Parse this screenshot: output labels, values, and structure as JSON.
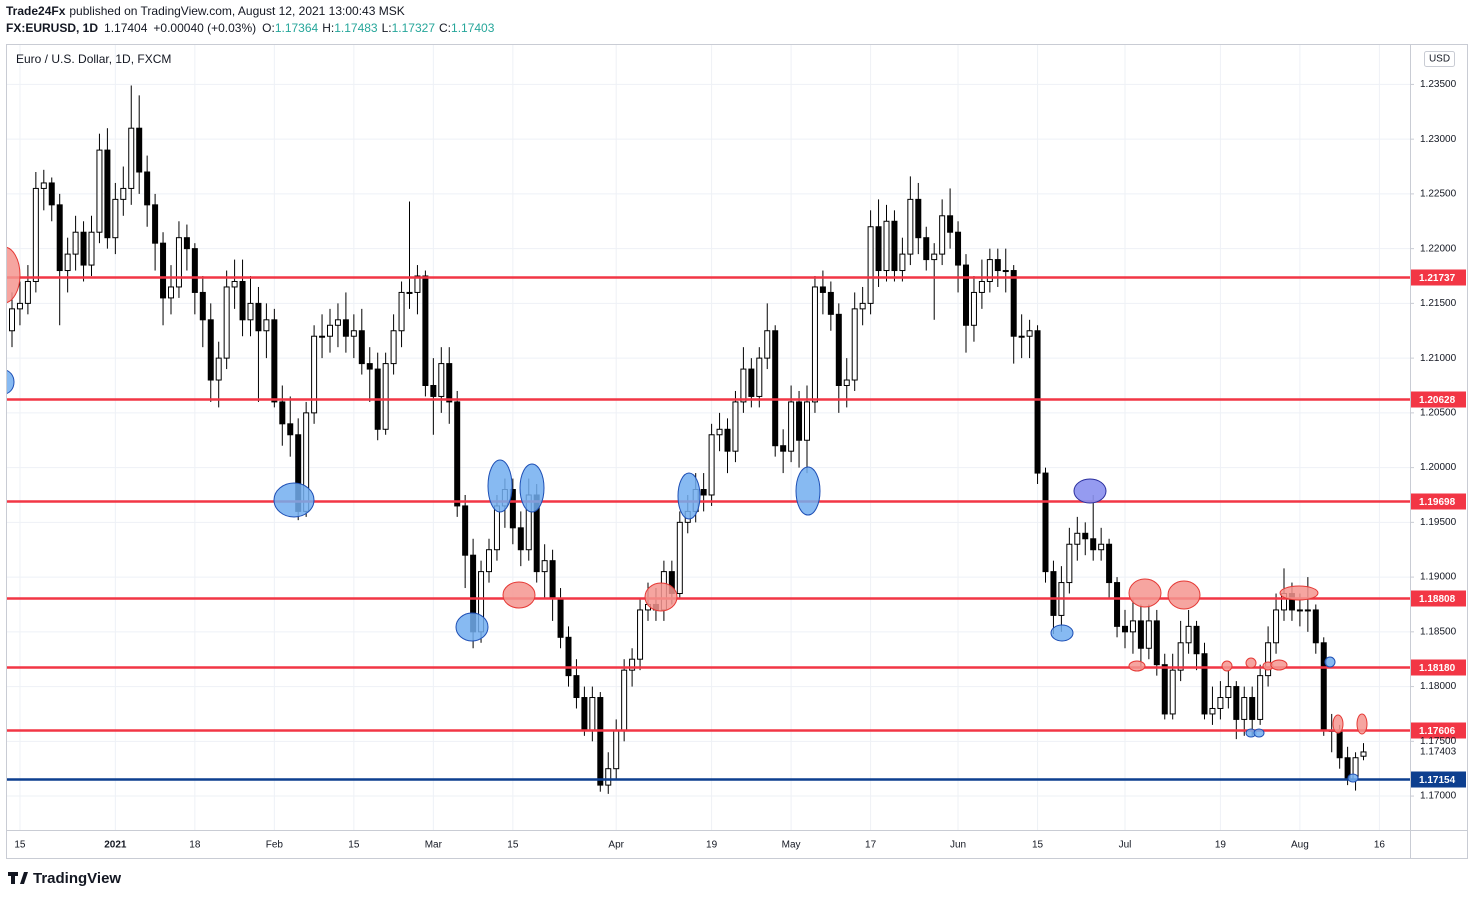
{
  "header": {
    "author": "Trade24Fx",
    "published": "published on TradingView.com, August 12, 2021 13:00:43 MSK",
    "symbol": "FX:EURUSD, 1D",
    "last": 1.17404,
    "change": "+0.00040 (+0.03%)",
    "o_label": "O:",
    "h_label": "H:",
    "l_label": "L:",
    "c_label": "C:"
  },
  "footer": {
    "brand": "TradingView"
  },
  "chart_data": {
    "type": "candlestick",
    "title": "Euro / U.S. Dollar, 1D, FXCM",
    "currency": "USD",
    "categories": [
      null,
      "15",
      null,
      null,
      null,
      null,
      null,
      null,
      null,
      null,
      null,
      null,
      null,
      "2021",
      null,
      null,
      null,
      null,
      null,
      null,
      null,
      null,
      null,
      "18",
      null,
      null,
      null,
      null,
      null,
      null,
      null,
      null,
      null,
      "Feb",
      null,
      null,
      null,
      null,
      null,
      null,
      null,
      null,
      null,
      "15",
      null,
      null,
      null,
      null,
      null,
      null,
      null,
      null,
      null,
      "Mar",
      null,
      null,
      null,
      null,
      null,
      null,
      null,
      null,
      null,
      "15",
      null,
      null,
      null,
      null,
      null,
      null,
      null,
      null,
      null,
      null,
      null,
      null,
      "Apr",
      null,
      null,
      null,
      null,
      null,
      null,
      null,
      null,
      null,
      null,
      null,
      "19",
      null,
      null,
      null,
      null,
      null,
      null,
      null,
      null,
      null,
      "May",
      null,
      null,
      null,
      null,
      null,
      null,
      null,
      null,
      null,
      "17",
      null,
      null,
      null,
      null,
      null,
      null,
      null,
      null,
      null,
      null,
      "Jun",
      null,
      null,
      null,
      null,
      null,
      null,
      null,
      null,
      null,
      "15",
      null,
      null,
      null,
      null,
      null,
      null,
      null,
      null,
      null,
      null,
      "Jul",
      null,
      null,
      null,
      null,
      null,
      null,
      null,
      null,
      null,
      null,
      null,
      "19",
      null,
      null,
      null,
      null,
      null,
      null,
      null,
      null,
      null,
      "Aug",
      null,
      null,
      null,
      null,
      null,
      null,
      null,
      null,
      null,
      "16"
    ],
    "candles": [
      [
        1.2125,
        1.216,
        1.211,
        1.2145
      ],
      [
        1.2145,
        1.217,
        1.213,
        1.215
      ],
      [
        1.215,
        1.2185,
        1.214,
        1.217
      ],
      [
        1.217,
        1.227,
        1.216,
        1.2255
      ],
      [
        1.2255,
        1.2272,
        1.2235,
        1.226
      ],
      [
        1.226,
        1.2265,
        1.2225,
        1.224
      ],
      [
        1.224,
        1.225,
        1.213,
        1.218
      ],
      [
        1.218,
        1.221,
        1.216,
        1.2195
      ],
      [
        1.2195,
        1.223,
        1.218,
        1.2215
      ],
      [
        1.2215,
        1.2225,
        1.217,
        1.2185
      ],
      [
        1.2185,
        1.223,
        1.2175,
        1.2215
      ],
      [
        1.2215,
        1.2305,
        1.2205,
        1.229
      ],
      [
        1.229,
        1.231,
        1.22,
        1.221
      ],
      [
        1.221,
        1.226,
        1.2195,
        1.2245
      ],
      [
        1.2245,
        1.2275,
        1.223,
        1.2255
      ],
      [
        1.2255,
        1.2349,
        1.224,
        1.231
      ],
      [
        1.231,
        1.234,
        1.225,
        1.227
      ],
      [
        1.227,
        1.2285,
        1.222,
        1.224
      ],
      [
        1.224,
        1.225,
        1.218,
        1.2205
      ],
      [
        1.2205,
        1.2215,
        1.213,
        1.2155
      ],
      [
        1.2155,
        1.2185,
        1.214,
        1.2165
      ],
      [
        1.2165,
        1.2225,
        1.2155,
        1.221
      ],
      [
        1.221,
        1.2222,
        1.218,
        1.22
      ],
      [
        1.22,
        1.2205,
        1.214,
        1.216
      ],
      [
        1.216,
        1.2175,
        1.211,
        1.2135
      ],
      [
        1.2135,
        1.215,
        1.206,
        1.208
      ],
      [
        1.208,
        1.2115,
        1.2055,
        1.21
      ],
      [
        1.21,
        1.218,
        1.209,
        1.2165
      ],
      [
        1.2165,
        1.219,
        1.2145,
        1.217
      ],
      [
        1.217,
        1.219,
        1.212,
        1.2135
      ],
      [
        1.2135,
        1.2175,
        1.212,
        1.215
      ],
      [
        1.215,
        1.2165,
        1.206,
        1.2125
      ],
      [
        1.2125,
        1.215,
        1.21,
        1.2135
      ],
      [
        1.2135,
        1.2145,
        1.2055,
        1.206
      ],
      [
        1.206,
        1.2075,
        1.202,
        1.204
      ],
      [
        1.204,
        1.2065,
        1.201,
        1.203
      ],
      [
        1.203,
        1.2045,
        1.1952,
        1.196
      ],
      [
        1.196,
        1.206,
        1.1955,
        1.205
      ],
      [
        1.205,
        1.213,
        1.204,
        1.212
      ],
      [
        1.212,
        1.214,
        1.21,
        1.212
      ],
      [
        1.212,
        1.2145,
        1.2105,
        1.213
      ],
      [
        1.213,
        1.215,
        1.211,
        1.2135
      ],
      [
        1.2135,
        1.216,
        1.2105,
        1.212
      ],
      [
        1.212,
        1.214,
        1.21,
        1.2125
      ],
      [
        1.2125,
        1.2145,
        1.2085,
        1.2095
      ],
      [
        1.2095,
        1.211,
        1.206,
        1.209
      ],
      [
        1.209,
        1.2105,
        1.2025,
        1.2035
      ],
      [
        1.2035,
        1.2105,
        1.203,
        1.2095
      ],
      [
        1.2095,
        1.214,
        1.2085,
        1.2125
      ],
      [
        1.2125,
        1.217,
        1.211,
        1.216
      ],
      [
        1.216,
        1.2243,
        1.2145,
        1.216
      ],
      [
        1.216,
        1.2185,
        1.214,
        1.2175
      ],
      [
        1.2175,
        1.218,
        1.2065,
        1.2075
      ],
      [
        1.2075,
        1.21,
        1.203,
        1.2065
      ],
      [
        1.2065,
        1.211,
        1.205,
        1.2095
      ],
      [
        1.2095,
        1.211,
        1.204,
        1.206
      ],
      [
        1.206,
        1.207,
        1.1955,
        1.1965
      ],
      [
        1.1965,
        1.1975,
        1.189,
        1.192
      ],
      [
        1.192,
        1.1935,
        1.1835,
        1.185
      ],
      [
        1.185,
        1.1915,
        1.184,
        1.1905
      ],
      [
        1.1905,
        1.1935,
        1.1895,
        1.1925
      ],
      [
        1.1925,
        1.1975,
        1.1915,
        1.1965
      ],
      [
        1.1965,
        1.199,
        1.1945,
        1.198
      ],
      [
        1.198,
        1.199,
        1.193,
        1.1945
      ],
      [
        1.1945,
        1.196,
        1.191,
        1.1925
      ],
      [
        1.1925,
        1.199,
        1.1915,
        1.1975
      ],
      [
        1.1975,
        1.1985,
        1.1895,
        1.1905
      ],
      [
        1.1905,
        1.193,
        1.188,
        1.1915
      ],
      [
        1.1915,
        1.1925,
        1.186,
        1.188
      ],
      [
        1.188,
        1.189,
        1.1835,
        1.1845
      ],
      [
        1.1845,
        1.1855,
        1.18,
        1.181
      ],
      [
        1.181,
        1.1825,
        1.178,
        1.179
      ],
      [
        1.179,
        1.18,
        1.1755,
        1.176
      ],
      [
        1.176,
        1.18,
        1.175,
        1.179
      ],
      [
        1.179,
        1.1795,
        1.1704,
        1.171
      ],
      [
        1.171,
        1.174,
        1.1702,
        1.1725
      ],
      [
        1.1725,
        1.177,
        1.1715,
        1.176
      ],
      [
        1.176,
        1.1825,
        1.175,
        1.1815
      ],
      [
        1.1815,
        1.1835,
        1.18,
        1.1825
      ],
      [
        1.1825,
        1.188,
        1.1815,
        1.187
      ],
      [
        1.187,
        1.1895,
        1.186,
        1.1875
      ],
      [
        1.1875,
        1.189,
        1.186,
        1.187
      ],
      [
        1.187,
        1.1915,
        1.186,
        1.1905
      ],
      [
        1.1905,
        1.1915,
        1.1875,
        1.1885
      ],
      [
        1.1885,
        1.196,
        1.188,
        1.195
      ],
      [
        1.195,
        1.1975,
        1.194,
        1.196
      ],
      [
        1.196,
        1.1995,
        1.195,
        1.198
      ],
      [
        1.198,
        1.1995,
        1.196,
        1.1975
      ],
      [
        1.1975,
        1.204,
        1.1965,
        1.203
      ],
      [
        1.203,
        1.205,
        1.2015,
        1.2035
      ],
      [
        1.2035,
        1.2045,
        1.1995,
        1.2015
      ],
      [
        1.2015,
        1.207,
        1.2005,
        1.206
      ],
      [
        1.206,
        1.211,
        1.205,
        1.209
      ],
      [
        1.209,
        1.21,
        1.2055,
        1.2065
      ],
      [
        1.2065,
        1.211,
        1.2055,
        1.21
      ],
      [
        1.21,
        1.215,
        1.209,
        1.2125
      ],
      [
        1.2125,
        1.213,
        1.201,
        1.202
      ],
      [
        1.202,
        1.2035,
        1.1995,
        1.2015
      ],
      [
        1.2015,
        1.2075,
        1.2005,
        1.206
      ],
      [
        1.206,
        1.207,
        1.2,
        1.2025
      ],
      [
        1.2025,
        1.2075,
        1.1995,
        1.206
      ],
      [
        1.206,
        1.2175,
        1.205,
        1.2165
      ],
      [
        1.2165,
        1.218,
        1.214,
        1.216
      ],
      [
        1.216,
        1.217,
        1.2125,
        1.214
      ],
      [
        1.214,
        1.215,
        1.205,
        1.2075
      ],
      [
        1.2075,
        1.21,
        1.2055,
        1.208
      ],
      [
        1.208,
        1.216,
        1.207,
        1.2145
      ],
      [
        1.2145,
        1.2165,
        1.213,
        1.215
      ],
      [
        1.215,
        1.2235,
        1.214,
        1.222
      ],
      [
        1.222,
        1.2245,
        1.2165,
        1.218
      ],
      [
        1.218,
        1.224,
        1.217,
        1.2225
      ],
      [
        1.2225,
        1.2235,
        1.217,
        1.218
      ],
      [
        1.218,
        1.221,
        1.217,
        1.2195
      ],
      [
        1.2195,
        1.2266,
        1.2185,
        1.2245
      ],
      [
        1.2245,
        1.226,
        1.2195,
        1.221
      ],
      [
        1.221,
        1.222,
        1.218,
        1.219
      ],
      [
        1.219,
        1.2205,
        1.2135,
        1.2195
      ],
      [
        1.2195,
        1.2245,
        1.2185,
        1.223
      ],
      [
        1.223,
        1.2255,
        1.22,
        1.2215
      ],
      [
        1.2215,
        1.2225,
        1.216,
        1.2185
      ],
      [
        1.2185,
        1.2195,
        1.2105,
        1.213
      ],
      [
        1.213,
        1.2175,
        1.2115,
        1.216
      ],
      [
        1.216,
        1.219,
        1.2145,
        1.217
      ],
      [
        1.217,
        1.22,
        1.216,
        1.219
      ],
      [
        1.219,
        1.22,
        1.2165,
        1.218
      ],
      [
        1.218,
        1.22,
        1.216,
        1.218
      ],
      [
        1.218,
        1.2185,
        1.2095,
        1.212
      ],
      [
        1.212,
        1.214,
        1.21,
        1.212
      ],
      [
        1.212,
        1.2135,
        1.21,
        1.2125
      ],
      [
        1.2125,
        1.213,
        1.1985,
        1.1995
      ],
      [
        1.1995,
        1.2,
        1.1895,
        1.1905
      ],
      [
        1.1905,
        1.1915,
        1.1848,
        1.1865
      ],
      [
        1.1865,
        1.191,
        1.185,
        1.1895
      ],
      [
        1.1895,
        1.1945,
        1.1885,
        1.193
      ],
      [
        1.193,
        1.1955,
        1.1915,
        1.194
      ],
      [
        1.194,
        1.195,
        1.192,
        1.1935
      ],
      [
        1.1935,
        1.1975,
        1.1915,
        1.1925
      ],
      [
        1.1925,
        1.1945,
        1.1915,
        1.193
      ],
      [
        1.193,
        1.1935,
        1.188,
        1.1895
      ],
      [
        1.1895,
        1.19,
        1.1845,
        1.1855
      ],
      [
        1.1855,
        1.187,
        1.1835,
        1.185
      ],
      [
        1.185,
        1.188,
        1.183,
        1.186
      ],
      [
        1.186,
        1.1875,
        1.1815,
        1.1835
      ],
      [
        1.1835,
        1.1875,
        1.1825,
        1.186
      ],
      [
        1.186,
        1.187,
        1.181,
        1.182
      ],
      [
        1.182,
        1.183,
        1.177,
        1.1775
      ],
      [
        1.1775,
        1.183,
        1.177,
        1.1815
      ],
      [
        1.1815,
        1.186,
        1.1805,
        1.184
      ],
      [
        1.184,
        1.187,
        1.183,
        1.1855
      ],
      [
        1.1855,
        1.186,
        1.1815,
        1.183
      ],
      [
        1.183,
        1.184,
        1.177,
        1.1775
      ],
      [
        1.1775,
        1.18,
        1.1765,
        1.178
      ],
      [
        1.178,
        1.1805,
        1.177,
        1.179
      ],
      [
        1.179,
        1.1815,
        1.178,
        1.18
      ],
      [
        1.18,
        1.1805,
        1.1752,
        1.177
      ],
      [
        1.177,
        1.18,
        1.1755,
        1.179
      ],
      [
        1.179,
        1.18,
        1.1755,
        1.177
      ],
      [
        1.177,
        1.182,
        1.1765,
        1.181
      ],
      [
        1.181,
        1.1855,
        1.18,
        1.184
      ],
      [
        1.184,
        1.1885,
        1.183,
        1.187
      ],
      [
        1.187,
        1.1908,
        1.186,
        1.1885
      ],
      [
        1.1885,
        1.1895,
        1.186,
        1.187
      ],
      [
        1.187,
        1.1885,
        1.1855,
        1.187
      ],
      [
        1.187,
        1.19,
        1.185,
        1.187
      ],
      [
        1.187,
        1.1875,
        1.183,
        1.184
      ],
      [
        1.184,
        1.1845,
        1.1755,
        1.176
      ],
      [
        1.176,
        1.1775,
        1.174,
        1.176
      ],
      [
        1.176,
        1.1765,
        1.1725,
        1.1735
      ],
      [
        1.1735,
        1.1745,
        1.171,
        1.1715
      ],
      [
        1.1715,
        1.174,
        1.1705,
        1.1735
      ],
      [
        1.17364,
        1.17483,
        1.17327,
        1.17403
      ],
      null,
      null
    ],
    "ylim": [
      1.1669,
      1.2386
    ],
    "yticks": [
      {
        "value": 1.17,
        "label": "1.17000"
      },
      {
        "value": 1.175,
        "label": "1.17500"
      },
      {
        "value": 1.18,
        "label": "1.18000"
      },
      {
        "value": 1.185,
        "label": "1.18500"
      },
      {
        "value": 1.19,
        "label": "1.19000"
      },
      {
        "value": 1.195,
        "label": "1.19500"
      },
      {
        "value": 1.2,
        "label": "1.20000"
      },
      {
        "value": 1.205,
        "label": "1.20500"
      },
      {
        "value": 1.21,
        "label": "1.21000"
      },
      {
        "value": 1.215,
        "label": "1.21500"
      },
      {
        "value": 1.22,
        "label": "1.22000"
      },
      {
        "value": 1.225,
        "label": "1.22500"
      },
      {
        "value": 1.23,
        "label": "1.23000"
      },
      {
        "value": 1.235,
        "label": "1.23500"
      }
    ],
    "levels": [
      {
        "value": 1.21737,
        "color": "#f23645"
      },
      {
        "value": 1.20628,
        "color": "#f23645"
      },
      {
        "value": 1.19698,
        "color": "#f23645"
      },
      {
        "value": 1.18808,
        "color": "#f23645"
      },
      {
        "value": 1.1818,
        "label": "1.18180",
        "color": "#f23645"
      },
      {
        "value": 1.17606,
        "color": "#f23645"
      },
      {
        "value": 1.17154,
        "color": "#0d3f8f"
      }
    ],
    "up_color": "#ffffff",
    "down_color": "#000000",
    "grid": true
  }
}
